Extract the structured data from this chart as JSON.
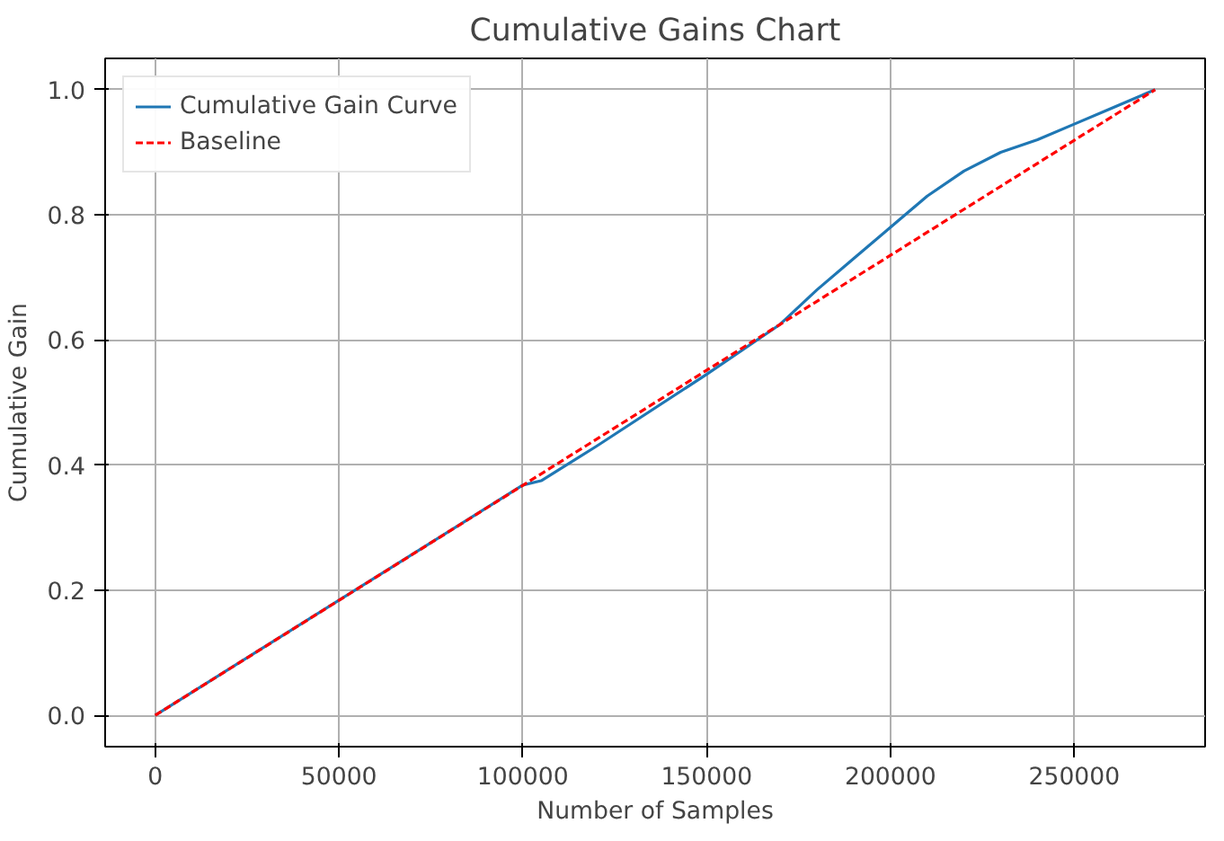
{
  "chart_data": {
    "type": "line",
    "title": "Cumulative Gains Chart",
    "xlabel": "Number of Samples",
    "ylabel": "Cumulative Gain",
    "series": [
      {
        "name": "Cumulative Gain Curve",
        "color": "#1f77b4",
        "line_style": "solid",
        "x": [
          0,
          100000,
          105000,
          120000,
          150000,
          170000,
          180000,
          190000,
          200000,
          210000,
          220000,
          230000,
          240000,
          250000,
          260000,
          272000
        ],
        "values": [
          0,
          0.368,
          0.375,
          0.43,
          0.545,
          0.625,
          0.68,
          0.73,
          0.78,
          0.83,
          0.87,
          0.9,
          0.92,
          0.945,
          0.97,
          1.0
        ]
      },
      {
        "name": "Baseline",
        "color": "#ff0000",
        "line_style": "dashed",
        "x": [
          0,
          272000
        ],
        "values": [
          0,
          1.0
        ]
      }
    ],
    "xlim": [
      -13600,
      285600
    ],
    "ylim": [
      -0.05,
      1.05
    ],
    "xticks": [
      0,
      50000,
      100000,
      150000,
      200000,
      250000
    ],
    "yticks": [
      {
        "value": 0,
        "label": "0.0"
      },
      {
        "value": 0.2,
        "label": "0.2"
      },
      {
        "value": 0.4,
        "label": "0.4"
      },
      {
        "value": 0.6,
        "label": "0.6"
      },
      {
        "value": 0.8,
        "label": "0.8"
      },
      {
        "value": 1.0,
        "label": "1.0"
      }
    ],
    "grid": true,
    "legend": "top left",
    "marker": "none"
  }
}
